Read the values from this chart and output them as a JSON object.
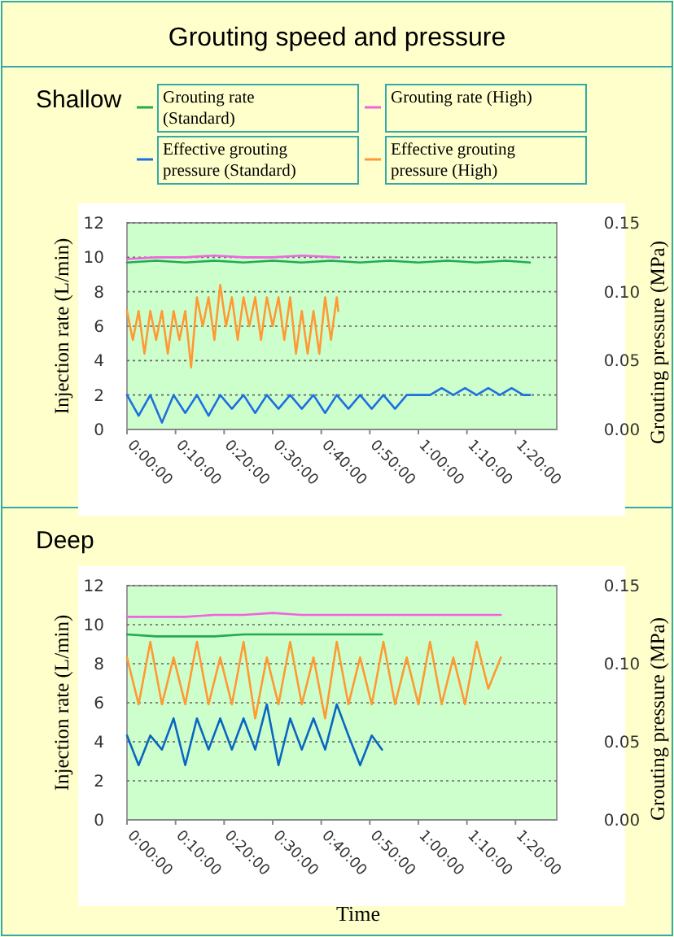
{
  "chart_data": [
    {
      "type": "line",
      "title": "Grouting speed and pressure",
      "subtitle": "Shallow",
      "ylabel": "Injection rate (L/min)",
      "y2label": "Grouting pressure (MPa)",
      "legend": "top",
      "grid": "y",
      "xlim": [
        0,
        1.475
      ],
      "xticks": [
        {
          "value": 0,
          "label": "0:00:00"
        },
        {
          "value": 0.1667,
          "label": "0:10:00"
        },
        {
          "value": 0.3333,
          "label": "0:20:00"
        },
        {
          "value": 0.5,
          "label": "0:30:00"
        },
        {
          "value": 0.6667,
          "label": "0:40:00"
        },
        {
          "value": 0.8333,
          "label": "0:50:00"
        },
        {
          "value": 1,
          "label": "1:00:00"
        },
        {
          "value": 1.1667,
          "label": "1:10:00"
        },
        {
          "value": 1.3333,
          "label": "1:20:00"
        }
      ],
      "ylim": [
        0,
        12
      ],
      "yticks": [
        0,
        2,
        4,
        6,
        8,
        10,
        12
      ],
      "y2lim": [
        0,
        0.15
      ],
      "y2ticks": [
        {
          "value": 0,
          "label": "0.00"
        },
        {
          "value": 0.05,
          "label": "0.05"
        },
        {
          "value": 0.1,
          "label": "0.10"
        },
        {
          "value": 0.15,
          "label": "0.15"
        }
      ],
      "series": [
        {
          "name": "Grouting rate (Standard)",
          "color": "#22aa55",
          "x": [
            0,
            0.1,
            0.2,
            0.3,
            0.4,
            0.5,
            0.6,
            0.7,
            0.8,
            0.9,
            1.0,
            1.1,
            1.2,
            1.3,
            1.383
          ],
          "values": [
            9.7,
            9.8,
            9.7,
            9.8,
            9.7,
            9.8,
            9.7,
            9.8,
            9.7,
            9.8,
            9.7,
            9.8,
            9.7,
            9.8,
            9.7
          ]
        },
        {
          "name": "Grouting rate (High)",
          "color": "#ee66dd",
          "x": [
            0,
            0.1,
            0.2,
            0.3,
            0.4,
            0.5,
            0.6,
            0.725
          ],
          "values": [
            9.9,
            10.0,
            10.0,
            10.1,
            10.0,
            10.0,
            10.1,
            10.0
          ]
        },
        {
          "name": "Effective grouting pressure (Standard)",
          "color": "#1f6fe0",
          "axis": "y2",
          "x": [
            0,
            0.04,
            0.08,
            0.12,
            0.16,
            0.2,
            0.24,
            0.28,
            0.32,
            0.36,
            0.4,
            0.44,
            0.48,
            0.52,
            0.56,
            0.6,
            0.64,
            0.68,
            0.72,
            0.76,
            0.8,
            0.84,
            0.88,
            0.92,
            0.96,
            1.0,
            1.04,
            1.08,
            1.12,
            1.16,
            1.2,
            1.24,
            1.28,
            1.32,
            1.36,
            1.383
          ],
          "values": [
            0.025,
            0.01,
            0.025,
            0.005,
            0.025,
            0.012,
            0.025,
            0.01,
            0.025,
            0.015,
            0.025,
            0.012,
            0.025,
            0.015,
            0.025,
            0.015,
            0.025,
            0.012,
            0.025,
            0.015,
            0.025,
            0.015,
            0.025,
            0.015,
            0.025,
            0.025,
            0.025,
            0.03,
            0.025,
            0.03,
            0.025,
            0.03,
            0.025,
            0.03,
            0.025,
            0.025
          ]
        },
        {
          "name": "Effective grouting pressure (High)",
          "color": "#ff9933",
          "axis": "y2",
          "x": [
            0,
            0.02,
            0.04,
            0.06,
            0.08,
            0.1,
            0.12,
            0.14,
            0.16,
            0.18,
            0.2,
            0.22,
            0.24,
            0.26,
            0.28,
            0.3,
            0.32,
            0.34,
            0.36,
            0.38,
            0.4,
            0.42,
            0.44,
            0.46,
            0.48,
            0.5,
            0.52,
            0.54,
            0.56,
            0.58,
            0.6,
            0.62,
            0.64,
            0.66,
            0.68,
            0.7,
            0.72,
            0.725
          ],
          "values": [
            0.086,
            0.065,
            0.086,
            0.055,
            0.086,
            0.065,
            0.086,
            0.055,
            0.086,
            0.065,
            0.086,
            0.045,
            0.096,
            0.075,
            0.096,
            0.065,
            0.105,
            0.075,
            0.096,
            0.065,
            0.096,
            0.075,
            0.096,
            0.065,
            0.096,
            0.075,
            0.096,
            0.065,
            0.096,
            0.055,
            0.086,
            0.055,
            0.086,
            0.055,
            0.096,
            0.065,
            0.096,
            0.086
          ]
        }
      ]
    },
    {
      "type": "line",
      "title": "Deep",
      "xlabel": "Time",
      "ylabel": "Injection rate (L/min)",
      "y2label": "Grouting pressure (MPa)",
      "grid": "y",
      "xlim": [
        0,
        1.475
      ],
      "xticks": [
        {
          "value": 0,
          "label": "0:00:00"
        },
        {
          "value": 0.1667,
          "label": "0:10:00"
        },
        {
          "value": 0.3333,
          "label": "0:20:00"
        },
        {
          "value": 0.5,
          "label": "0:30:00"
        },
        {
          "value": 0.6667,
          "label": "0:40:00"
        },
        {
          "value": 0.8333,
          "label": "0:50:00"
        },
        {
          "value": 1,
          "label": "1:00:00"
        },
        {
          "value": 1.1667,
          "label": "1:10:00"
        },
        {
          "value": 1.3333,
          "label": "1:20:00"
        }
      ],
      "ylim": [
        0,
        12
      ],
      "yticks": [
        0,
        2,
        4,
        6,
        8,
        10,
        12
      ],
      "y2lim": [
        0,
        0.15
      ],
      "y2ticks": [
        {
          "value": 0,
          "label": "0.00"
        },
        {
          "value": 0.05,
          "label": "0.05"
        },
        {
          "value": 0.1,
          "label": "0.10"
        },
        {
          "value": 0.15,
          "label": "0.15"
        }
      ],
      "series": [
        {
          "color": "#ee66dd",
          "x": [
            0,
            0.1,
            0.2,
            0.3,
            0.4,
            0.5,
            0.6,
            0.7,
            0.8,
            0.9,
            1.0,
            1.1,
            1.2,
            1.283
          ],
          "values": [
            10.4,
            10.4,
            10.4,
            10.5,
            10.5,
            10.6,
            10.5,
            10.5,
            10.5,
            10.5,
            10.5,
            10.5,
            10.5,
            10.5
          ]
        },
        {
          "color": "#22aa55",
          "x": [
            0,
            0.1,
            0.2,
            0.3,
            0.4,
            0.5,
            0.6,
            0.7,
            0.8,
            0.875
          ],
          "values": [
            9.5,
            9.4,
            9.4,
            9.4,
            9.5,
            9.5,
            9.5,
            9.5,
            9.5,
            9.5
          ]
        },
        {
          "color": "#ff9933",
          "axis": "y2",
          "x": [
            0,
            0.04,
            0.08,
            0.12,
            0.16,
            0.2,
            0.24,
            0.28,
            0.32,
            0.36,
            0.4,
            0.44,
            0.48,
            0.52,
            0.56,
            0.6,
            0.64,
            0.68,
            0.72,
            0.76,
            0.8,
            0.84,
            0.88,
            0.92,
            0.96,
            1.0,
            1.04,
            1.08,
            1.12,
            1.16,
            1.2,
            1.24,
            1.283
          ],
          "values": [
            0.104,
            0.074,
            0.114,
            0.074,
            0.104,
            0.074,
            0.114,
            0.074,
            0.104,
            0.074,
            0.114,
            0.065,
            0.104,
            0.074,
            0.114,
            0.074,
            0.104,
            0.065,
            0.114,
            0.074,
            0.104,
            0.074,
            0.114,
            0.074,
            0.104,
            0.074,
            0.114,
            0.074,
            0.104,
            0.074,
            0.114,
            0.084,
            0.104
          ]
        },
        {
          "color": "#0a66c2",
          "axis": "y2",
          "x": [
            0,
            0.04,
            0.08,
            0.12,
            0.16,
            0.2,
            0.24,
            0.28,
            0.32,
            0.36,
            0.4,
            0.44,
            0.48,
            0.52,
            0.56,
            0.6,
            0.64,
            0.68,
            0.72,
            0.76,
            0.8,
            0.84,
            0.875
          ],
          "values": [
            0.054,
            0.035,
            0.054,
            0.045,
            0.065,
            0.035,
            0.065,
            0.045,
            0.065,
            0.045,
            0.065,
            0.045,
            0.074,
            0.035,
            0.065,
            0.045,
            0.065,
            0.045,
            0.074,
            0.054,
            0.035,
            0.054,
            0.045
          ]
        }
      ]
    }
  ]
}
